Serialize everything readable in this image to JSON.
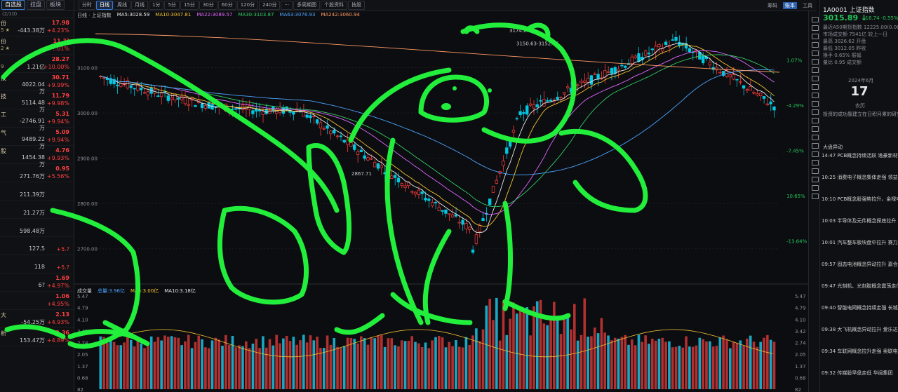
{
  "left_panel": {
    "tabs": [
      "自选股",
      "拉盘",
      "板块"
    ],
    "subheader": "(2/10)",
    "rows": [
      {
        "name": "份",
        "code": "5 ★",
        "amount": "-443.38万",
        "price": "17.98",
        "pct": "+4.23%"
      },
      {
        "name": "份",
        "code": "2 ★",
        "amount": "",
        "price": "11.??",
        "pct": "+?.01%"
      },
      {
        "name": "",
        "code": "9",
        "amount": "1.21亿",
        "price": "28.27",
        "pct": "+10.00%"
      },
      {
        "name": "技",
        "code": "",
        "amount": "4022.04万",
        "price": "30.71",
        "pct": "+9.99%"
      },
      {
        "name": "技",
        "code": "",
        "amount": "5114.48万",
        "price": "11.79",
        "pct": "+9.98%"
      },
      {
        "name": "工",
        "code": "",
        "amount": "-2746.91万",
        "price": "5.31",
        "pct": "+9.94%"
      },
      {
        "name": "气",
        "code": "",
        "amount": "9489.22万",
        "price": "5.09",
        "pct": "+9.94%"
      },
      {
        "name": "股",
        "code": "",
        "amount": "1454.38万",
        "price": "4.76",
        "pct": "+9.93%"
      },
      {
        "name": "",
        "code": "",
        "amount": "271.76万",
        "price": "0.95",
        "pct": "+5.56%"
      },
      {
        "name": "",
        "code": "",
        "amount": "211.39万",
        "price": "",
        "pct": ""
      },
      {
        "name": "",
        "code": "",
        "amount": "21.27万",
        "price": "",
        "pct": ""
      },
      {
        "name": "",
        "code": "",
        "amount": "598.48万",
        "price": "",
        "pct": ""
      },
      {
        "name": "",
        "code": "",
        "amount": "127.5",
        "price": "",
        "pct": "+5.?"
      },
      {
        "name": "",
        "code": "",
        "amount": "118",
        "price": "",
        "pct": "+5.?"
      },
      {
        "name": "",
        "code": "",
        "amount": "6?",
        "price": "1.69",
        "pct": "+4.97%"
      },
      {
        "name": "",
        "code": "",
        "amount": "",
        "price": "1.06",
        "pct": "+4.95%"
      },
      {
        "name": "大",
        "code": "",
        "amount": "-54.25万",
        "price": "2.13",
        "pct": "+4.93%"
      },
      {
        "name": "析",
        "code": "",
        "amount": "153.47万",
        "price": "2.36",
        "pct": "+4.89%"
      }
    ]
  },
  "toolbar": {
    "buttons": [
      "分时",
      "日线",
      "周线",
      "月线",
      "1分",
      "5分",
      "15分",
      "30分",
      "60分",
      "120分",
      "240分",
      "···",
      "多周期图",
      "个股资料",
      "技股"
    ],
    "active": "日线",
    "right": [
      "筹码",
      "账本",
      "工具"
    ]
  },
  "ma_info": [
    {
      "text": "日线 · 上证指数",
      "color": "#c8c8c8"
    },
    {
      "text": "MA5:3028.59",
      "color": "#e6e6e6"
    },
    {
      "text": "MA10:3047.81",
      "color": "#f1c232"
    },
    {
      "text": "MA22:3089.57",
      "color": "#e066ff"
    },
    {
      "text": "MA30:3103.87",
      "color": "#33cc66"
    },
    {
      "text": "MA63:3076.93",
      "color": "#4aa3ff"
    },
    {
      "text": "MA242:3060.94",
      "color": "#ff9966"
    }
  ],
  "vol_info": [
    {
      "text": "成交量",
      "color": "#c8c8c8"
    },
    {
      "text": "总量:3.96亿",
      "color": "#4aa3ff"
    },
    {
      "text": "MA5:3.00亿",
      "color": "#f1c232"
    },
    {
      "text": "MA10:3.18亿",
      "color": "#e6e6e6"
    }
  ],
  "price_axis": {
    "left_ticks": [
      "3100.00",
      "3000.00",
      "2900.00",
      "2800.00",
      "2700.00"
    ],
    "right_pct": [
      "1.07%",
      "-4.29%",
      "-7.45%",
      "10.65%",
      "-13.64%"
    ],
    "annotations": [
      "3174.27",
      "3150.63-3152.46",
      "2867.71"
    ]
  },
  "volume_axis": {
    "ticks": [
      "5.47",
      "4.79",
      "4.10",
      "3.42",
      "2.74",
      "2.05",
      "1.37",
      "0.68",
      "82"
    ]
  },
  "chart_data": {
    "type": "candlestick",
    "ylim": [
      2650,
      3200
    ],
    "ma_lines": [
      "MA5",
      "MA10",
      "MA22",
      "MA30",
      "MA63",
      "MA242"
    ],
    "volume_ylim": [
      0,
      5.47
    ],
    "up_color": "#ff3b3b",
    "down_color": "#00c8e0"
  },
  "right_panel": {
    "code": "1A0001 上证指数",
    "price": "3015.89 ↓",
    "change": "-16.74  -0.55%",
    "lines": [
      "最近A50期货指数  12225.00(0.00%)",
      "市场成交额  7541亿   较上一日",
      "最高  3026.62 开盘",
      "最低  3012.05 昨收",
      "换手  0.65% 振幅",
      "量比  0.95 成交额"
    ],
    "calendar": "17",
    "calendar_month": "2024年6月",
    "calendar_note": "农历",
    "news_title": "大盘异动",
    "news": [
      "14:47 PCB概念持续活跃 逸豪新材20cm",
      "10:25 消费电子概念集体走强 领益智造",
      "10:10 PCB概念股强势拉升，金禄电子",
      "10:03 半导体及元件概念探底拉升 东",
      "10:01 汽车整车板块盘中拉升 赛力斯",
      "09:57 固态电池概念异动拉升 嘉合科技",
      "09:47 光刻机、光刻胶概念震荡走低",
      "09:40 智能电网概念持续走强 长城电",
      "09:38 大飞机概念异动拉升 爱乐达涨",
      "09:34 车联网概念拉升走强 奥联电子",
      "09:32 传媒股早盘走低 华闻集团"
    ],
    "quote": "投资的成功靠建立在日积月累的研究"
  }
}
